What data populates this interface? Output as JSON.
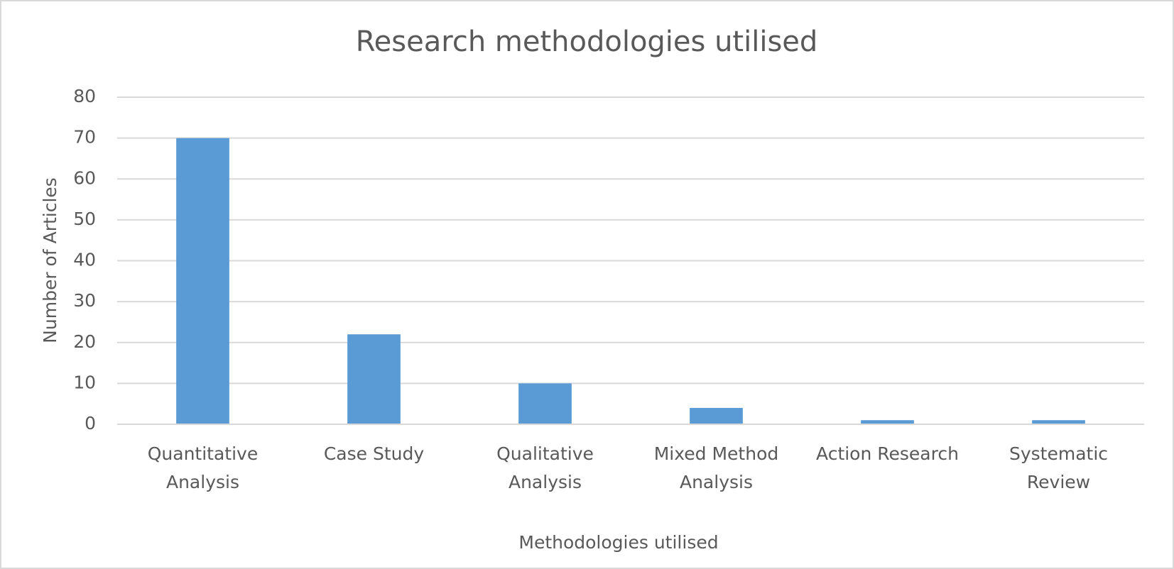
{
  "chart_data": {
    "type": "bar",
    "title": "Research methodologies utilised",
    "x_label": "Methodologies utilised",
    "y_label": "Number of Articles",
    "categories": [
      "Quantitative Analysis",
      "Case Study",
      "Qualitative Analysis",
      "Mixed Method Analysis",
      "Action Research",
      "Systematic Review"
    ],
    "values": [
      70,
      22,
      10,
      4,
      1,
      1
    ],
    "color": "#5b9bd5",
    "ylim": [
      0,
      80
    ],
    "yticks": [
      0,
      10,
      20,
      30,
      40,
      50,
      60,
      70,
      80
    ],
    "grid": true
  }
}
